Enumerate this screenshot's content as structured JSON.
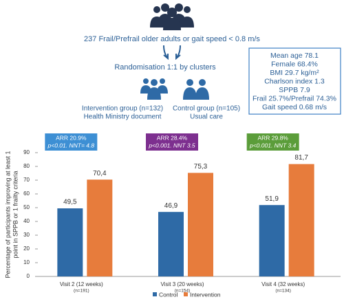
{
  "diagram": {
    "population": "237 Frail/Prefrail older adults or gait speed < 0.8 m/s",
    "randomisation": "Randomisation 1:1 by clusters",
    "intervention_group": {
      "name": "Intervention group (n=132)",
      "detail": "Health Ministry document"
    },
    "control_group": {
      "name": "Control group (n=105)",
      "detail": "Usual care"
    },
    "baseline": [
      "Mean age 78.1",
      "Female 68.4%",
      "BMI 29.7 kg/m²",
      "Charlson index 1.3",
      "SPPB 7.9",
      "Frail 25.7%/Prefrail 74.3%",
      "Gait speed 0.68 m/s"
    ]
  },
  "chart_data": {
    "type": "bar",
    "y_label": [
      "Percentage of participants improving at least 1",
      "point in SPPB or 1 frailty criteria"
    ],
    "categories": [
      "Visit 2 (12 weeks)",
      "Visit 3 (20 weeks)",
      "Visit 4 (32 weeks)"
    ],
    "category_notes": [
      "(n=191)",
      "(n=154)",
      "(n=134)"
    ],
    "series": [
      {
        "name": "Control",
        "color": "#2e6aa6",
        "values": [
          49.5,
          46.9,
          51.9
        ],
        "value_labels": [
          "49,5",
          "46,9",
          "51,9"
        ]
      },
      {
        "name": "Intervention",
        "color": "#e77c3c",
        "values": [
          70.4,
          75.3,
          81.7
        ],
        "value_labels": [
          "70,4",
          "75,3",
          "81,7"
        ]
      }
    ],
    "annotations": [
      {
        "text": "ARR 20.9%",
        "stats": "p<0.01. NNT= 4.8",
        "color": "#3d8fd4"
      },
      {
        "text": "ARR 28.4%",
        "stats": "p<0.001. NNT 3.5",
        "color": "#7d2f8f"
      },
      {
        "text": "ARR 29.8%",
        "stats": "p<0.001. NNT 3.4",
        "color": "#5b9d3a"
      }
    ],
    "ylim": [
      0,
      90
    ],
    "yticks": [
      0,
      10,
      20,
      30,
      40,
      50,
      60,
      70,
      80,
      90
    ],
    "grid": false
  }
}
